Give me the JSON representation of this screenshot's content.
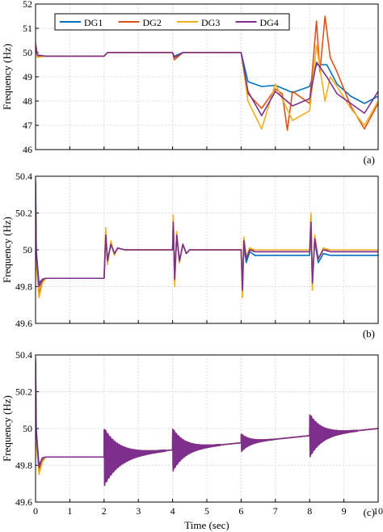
{
  "chart_data": [
    {
      "type": "line",
      "panel_label": "(a)",
      "ylabel": "Frequency (Hz)",
      "xlabel": "",
      "xlim": [
        0,
        10
      ],
      "ylim": [
        46,
        52
      ],
      "xticks": [
        "0",
        "1",
        "2",
        "3",
        "4",
        "5",
        "6",
        "7",
        "8",
        "9",
        "10"
      ],
      "yticks": [
        "46",
        "47",
        "48",
        "49",
        "50",
        "51",
        "52"
      ],
      "xtick_labels_shown": false,
      "grid": true,
      "legend_position": "top-left, horizontal",
      "series": [
        {
          "name": "DG1",
          "color": "#0072BD",
          "x": [
            0,
            0.05,
            0.3,
            2,
            2.1,
            4,
            4.05,
            4.3,
            5,
            6,
            6.2,
            6.6,
            7,
            7.5,
            8,
            8.2,
            8.5,
            8.8,
            9.2,
            9.6,
            10
          ],
          "y": [
            50.3,
            49.9,
            49.85,
            49.85,
            50.0,
            50.0,
            49.85,
            50.0,
            50.0,
            50.0,
            48.8,
            48.6,
            48.65,
            48.35,
            48.6,
            49.5,
            49.5,
            48.7,
            48.2,
            47.9,
            48.2
          ]
        },
        {
          "name": "DG2",
          "color": "#D95319",
          "x": [
            0,
            0.05,
            0.3,
            2,
            2.1,
            4,
            4.05,
            4.3,
            5,
            6,
            6.2,
            6.6,
            7,
            7.2,
            7.35,
            7.5,
            8,
            8.2,
            8.3,
            8.45,
            8.6,
            8.8,
            9.2,
            9.6,
            10
          ],
          "y": [
            50.4,
            49.85,
            49.85,
            49.85,
            50.0,
            50.0,
            49.7,
            50.0,
            50.0,
            50.0,
            48.3,
            47.7,
            48.5,
            48.3,
            46.8,
            48.4,
            47.9,
            51.3,
            49.2,
            51.5,
            49.8,
            49.2,
            47.8,
            46.85,
            47.9
          ]
        },
        {
          "name": "DG3",
          "color": "#EDB120",
          "x": [
            0,
            0.05,
            0.3,
            2,
            2.1,
            4,
            4.05,
            4.3,
            5,
            6,
            6.2,
            6.6,
            7,
            7.5,
            8,
            8.2,
            8.45,
            8.6,
            8.8,
            9.2,
            9.6,
            10
          ],
          "y": [
            50.35,
            49.8,
            49.85,
            49.85,
            50.0,
            50.0,
            49.8,
            50.0,
            50.0,
            50.0,
            48.0,
            46.85,
            48.7,
            47.2,
            47.6,
            50.3,
            48.0,
            49.0,
            48.6,
            47.7,
            47.0,
            48.0
          ]
        },
        {
          "name": "DG4",
          "color": "#7E2F8E",
          "x": [
            0,
            0.05,
            0.3,
            2,
            2.1,
            4,
            4.05,
            4.3,
            5,
            6,
            6.2,
            6.6,
            7,
            7.5,
            8,
            8.2,
            8.5,
            8.8,
            9.2,
            9.6,
            10
          ],
          "y": [
            50.3,
            49.9,
            49.85,
            49.85,
            50.0,
            50.0,
            49.8,
            50.0,
            50.0,
            50.0,
            48.4,
            47.4,
            48.4,
            47.8,
            48.1,
            49.6,
            49.0,
            48.3,
            47.9,
            47.5,
            48.4
          ]
        }
      ]
    },
    {
      "type": "line",
      "panel_label": "(b)",
      "ylabel": "Frequency (Hz)",
      "xlabel": "",
      "xlim": [
        0,
        10
      ],
      "ylim": [
        49.6,
        50.4
      ],
      "xticks": [
        "0",
        "1",
        "2",
        "3",
        "4",
        "5",
        "6",
        "7",
        "8",
        "9",
        "10"
      ],
      "yticks": [
        "49.6",
        "49.8",
        "50",
        "50.2",
        "50.4"
      ],
      "xtick_labels_shown": false,
      "grid": true,
      "series": [
        {
          "name": "DG1",
          "color": "#0072BD",
          "x": [
            0,
            0.02,
            0.1,
            0.2,
            0.3,
            2,
            2.05,
            2.1,
            2.2,
            2.3,
            2.4,
            2.6,
            4,
            4.02,
            4.06,
            4.12,
            4.2,
            4.3,
            4.4,
            4.5,
            4.7,
            6,
            6.04,
            6.08,
            6.15,
            6.25,
            6.4,
            6.6,
            8,
            8.04,
            8.08,
            8.15,
            8.25,
            8.4,
            8.6,
            10
          ],
          "y": [
            50.38,
            50.0,
            49.82,
            49.84,
            49.845,
            49.845,
            50.06,
            49.95,
            50.03,
            49.98,
            50.01,
            50.0,
            50.0,
            50.14,
            49.85,
            50.08,
            49.93,
            50.03,
            49.98,
            50.0,
            50.0,
            50.0,
            49.8,
            50.02,
            49.93,
            49.99,
            49.97,
            49.97,
            49.97,
            50.12,
            49.83,
            50.05,
            49.93,
            49.98,
            49.97,
            49.97
          ]
        },
        {
          "name": "DG2",
          "color": "#D95319",
          "x": [
            0,
            0.02,
            0.1,
            0.2,
            0.3,
            2,
            2.05,
            2.1,
            2.2,
            2.3,
            2.4,
            2.6,
            4,
            4.02,
            4.06,
            4.12,
            4.2,
            4.3,
            4.4,
            4.5,
            4.7,
            6,
            6.04,
            6.08,
            6.15,
            6.25,
            6.4,
            6.6,
            8,
            8.04,
            8.08,
            8.15,
            8.25,
            8.4,
            8.6,
            10
          ],
          "y": [
            50.35,
            49.95,
            49.76,
            49.83,
            49.845,
            49.845,
            50.1,
            49.93,
            50.04,
            49.98,
            50.01,
            50.0,
            50.0,
            50.17,
            49.82,
            50.09,
            49.94,
            50.03,
            49.98,
            50.0,
            50.0,
            50.0,
            49.76,
            50.06,
            49.96,
            50.01,
            49.99,
            49.99,
            49.99,
            50.18,
            49.8,
            50.07,
            49.95,
            50.01,
            49.99,
            49.99
          ]
        },
        {
          "name": "DG3",
          "color": "#EDB120",
          "x": [
            0,
            0.02,
            0.1,
            0.2,
            0.3,
            2,
            2.05,
            2.1,
            2.2,
            2.3,
            2.4,
            2.6,
            4,
            4.02,
            4.06,
            4.12,
            4.2,
            4.3,
            4.4,
            4.5,
            4.7,
            6,
            6.04,
            6.08,
            6.15,
            6.25,
            6.4,
            6.6,
            8,
            8.04,
            8.08,
            8.15,
            8.25,
            8.4,
            8.6,
            10
          ],
          "y": [
            50.33,
            49.92,
            49.74,
            49.82,
            49.845,
            49.845,
            50.12,
            49.92,
            50.05,
            49.97,
            50.01,
            50.0,
            50.0,
            50.19,
            49.8,
            50.1,
            49.93,
            50.03,
            49.98,
            50.0,
            50.0,
            50.0,
            49.74,
            50.07,
            49.96,
            50.01,
            50.0,
            50.0,
            50.0,
            50.2,
            49.78,
            50.08,
            49.95,
            50.01,
            50.0,
            50.0
          ]
        },
        {
          "name": "DG4",
          "color": "#7E2F8E",
          "x": [
            0,
            0.02,
            0.1,
            0.2,
            0.3,
            2,
            2.05,
            2.1,
            2.2,
            2.3,
            2.4,
            2.6,
            4,
            4.02,
            4.06,
            4.12,
            4.2,
            4.3,
            4.4,
            4.5,
            4.7,
            6,
            6.04,
            6.08,
            6.15,
            6.25,
            6.4,
            6.6,
            8,
            8.04,
            8.08,
            8.15,
            8.25,
            8.4,
            8.6,
            10
          ],
          "y": [
            50.36,
            49.98,
            49.8,
            49.84,
            49.845,
            49.845,
            50.08,
            49.94,
            50.03,
            49.98,
            50.01,
            50.0,
            50.0,
            50.15,
            49.84,
            50.08,
            49.94,
            50.03,
            49.98,
            50.0,
            50.0,
            50.0,
            49.78,
            50.05,
            49.95,
            50.0,
            49.99,
            49.99,
            49.99,
            50.15,
            49.82,
            50.06,
            49.95,
            50.0,
            49.99,
            49.99
          ]
        }
      ]
    },
    {
      "type": "line",
      "panel_label": "(c)",
      "ylabel": "Frequency (Hz)",
      "xlabel": "Time (sec)",
      "xlim": [
        0,
        10
      ],
      "ylim": [
        49.6,
        50.4
      ],
      "xticks": [
        "0",
        "1",
        "2",
        "3",
        "4",
        "5",
        "6",
        "7",
        "8",
        "9",
        "10"
      ],
      "yticks": [
        "49.6",
        "49.8",
        "50",
        "50.2",
        "50.4"
      ],
      "xtick_labels_shown": true,
      "grid": true,
      "series": [
        {
          "name": "DG1",
          "color": "#0072BD",
          "x": [
            0,
            0.02,
            0.1,
            0.2,
            0.3,
            2,
            10
          ],
          "y": [
            50.38,
            50.0,
            49.8,
            49.84,
            49.845,
            49.845,
            50.0
          ],
          "oscillation_bursts": [
            {
              "t": 2,
              "amplitude": 0.16,
              "decay": 0.45
            },
            {
              "t": 4,
              "amplitude": 0.12,
              "decay": 0.35
            },
            {
              "t": 6,
              "amplitude": 0.05,
              "decay": 0.25
            },
            {
              "t": 8,
              "amplitude": 0.12,
              "decay": 0.35
            }
          ]
        },
        {
          "name": "DG2",
          "color": "#D95319",
          "x": [
            0,
            0.02,
            0.1,
            0.2,
            0.3,
            2,
            10
          ],
          "y": [
            50.35,
            49.95,
            49.77,
            49.83,
            49.845,
            49.845,
            50.0
          ],
          "oscillation_bursts": [
            {
              "t": 2,
              "amplitude": 0.16,
              "decay": 0.45
            },
            {
              "t": 4,
              "amplitude": 0.12,
              "decay": 0.35
            },
            {
              "t": 6,
              "amplitude": 0.05,
              "decay": 0.25
            },
            {
              "t": 8,
              "amplitude": 0.12,
              "decay": 0.35
            }
          ]
        },
        {
          "name": "DG3",
          "color": "#EDB120",
          "x": [
            0,
            0.02,
            0.1,
            0.2,
            0.3,
            2,
            10
          ],
          "y": [
            50.33,
            49.92,
            49.75,
            49.82,
            49.845,
            49.845,
            50.0
          ],
          "oscillation_bursts": [
            {
              "t": 2,
              "amplitude": 0.16,
              "decay": 0.45
            },
            {
              "t": 4,
              "amplitude": 0.12,
              "decay": 0.35
            },
            {
              "t": 6,
              "amplitude": 0.05,
              "decay": 0.25
            },
            {
              "t": 8,
              "amplitude": 0.12,
              "decay": 0.35
            }
          ]
        },
        {
          "name": "DG4",
          "color": "#7E2F8E",
          "x": [
            0,
            0.02,
            0.1,
            0.2,
            0.3,
            2,
            10
          ],
          "y": [
            50.36,
            49.98,
            49.79,
            49.84,
            49.845,
            49.845,
            50.0
          ],
          "oscillation_bursts": [
            {
              "t": 2,
              "amplitude": 0.16,
              "decay": 0.45
            },
            {
              "t": 4,
              "amplitude": 0.12,
              "decay": 0.35
            },
            {
              "t": 6,
              "amplitude": 0.05,
              "decay": 0.25
            },
            {
              "t": 8,
              "amplitude": 0.12,
              "decay": 0.35
            }
          ]
        }
      ]
    }
  ]
}
